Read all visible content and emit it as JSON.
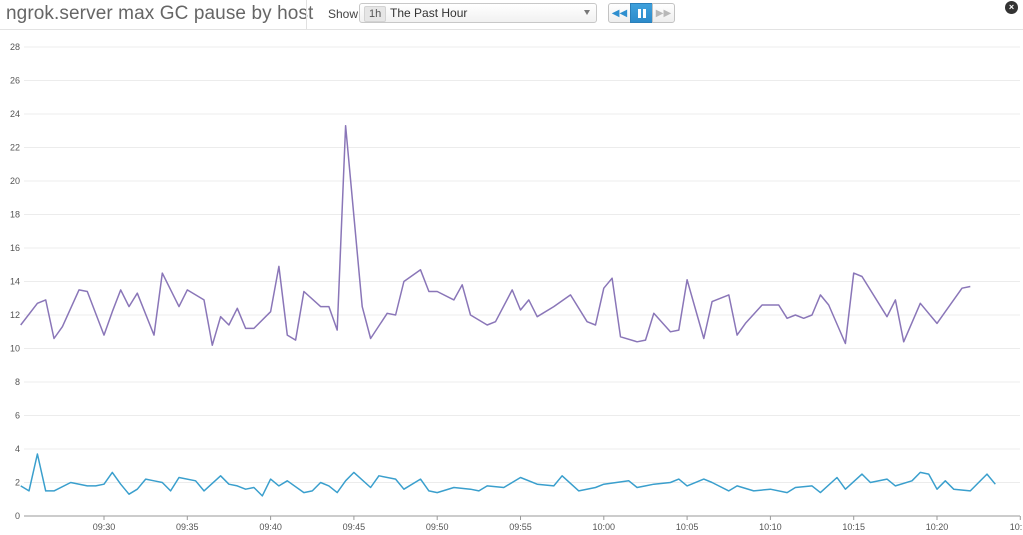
{
  "header": {
    "title": "ngrok.server max GC pause by host",
    "show_label": "Show",
    "time_badge": "1h",
    "time_value": "The Past Hour",
    "close_glyph": "×"
  },
  "controls": {
    "rewind_icon": "rewind-icon",
    "pause_icon": "pause-icon",
    "forward_icon": "fast-forward-icon"
  },
  "colors": {
    "series_purple": "#8a76b8",
    "series_blue": "#3a9fcd",
    "accent": "#2f8fcf"
  },
  "chart_data": {
    "type": "line",
    "xlabel": "",
    "ylabel": "",
    "ylim": [
      0,
      28
    ],
    "yticks": [
      0,
      2,
      4,
      6,
      8,
      10,
      12,
      14,
      16,
      18,
      20,
      22,
      24,
      26,
      28
    ],
    "xlim": [
      "09:25",
      "10:25"
    ],
    "xticks": [
      "09:30",
      "09:35",
      "09:40",
      "09:45",
      "09:50",
      "09:55",
      "10:00",
      "10:05",
      "10:10",
      "10:15",
      "10:20",
      "10:"
    ],
    "grid": true,
    "series": [
      {
        "points": [
          [
            "09:25",
            11.4
          ],
          [
            "09:26",
            12.7
          ],
          [
            "09:26:30",
            12.9
          ],
          [
            "09:27",
            10.6
          ],
          [
            "09:27:30",
            11.3
          ],
          [
            "09:28:30",
            13.5
          ],
          [
            "09:29",
            13.4
          ],
          [
            "09:30",
            10.8
          ],
          [
            "09:30:30",
            12.2
          ],
          [
            "09:31",
            13.5
          ],
          [
            "09:31:30",
            12.5
          ],
          [
            "09:32",
            13.3
          ],
          [
            "09:33",
            10.8
          ],
          [
            "09:33:30",
            14.5
          ],
          [
            "09:34:30",
            12.5
          ],
          [
            "09:35",
            13.5
          ],
          [
            "09:36",
            12.9
          ],
          [
            "09:36:30",
            10.2
          ],
          [
            "09:37",
            11.9
          ],
          [
            "09:37:30",
            11.4
          ],
          [
            "09:38",
            12.4
          ],
          [
            "09:38:30",
            11.2
          ],
          [
            "09:39",
            11.2
          ],
          [
            "09:40",
            12.2
          ],
          [
            "09:40:30",
            14.9
          ],
          [
            "09:41",
            10.8
          ],
          [
            "09:41:30",
            10.5
          ],
          [
            "09:42",
            13.4
          ],
          [
            "09:43",
            12.5
          ],
          [
            "09:43:30",
            12.5
          ],
          [
            "09:44",
            11.1
          ],
          [
            "09:44:30",
            23.3
          ],
          [
            "09:45:30",
            12.5
          ],
          [
            "09:46",
            10.6
          ],
          [
            "09:47",
            12.1
          ],
          [
            "09:47:30",
            12.0
          ],
          [
            "09:48",
            14.0
          ],
          [
            "09:49",
            14.7
          ],
          [
            "09:49:30",
            13.4
          ],
          [
            "09:50",
            13.4
          ],
          [
            "09:51",
            12.9
          ],
          [
            "09:51:30",
            13.8
          ],
          [
            "09:52",
            12.0
          ],
          [
            "09:53",
            11.4
          ],
          [
            "09:53:30",
            11.6
          ],
          [
            "09:54:30",
            13.5
          ],
          [
            "09:55",
            12.3
          ],
          [
            "09:55:30",
            12.9
          ],
          [
            "09:56",
            11.9
          ],
          [
            "09:57",
            12.5
          ],
          [
            "09:58",
            13.2
          ],
          [
            "09:59",
            11.6
          ],
          [
            "09:59:30",
            11.4
          ],
          [
            "10:00",
            13.6
          ],
          [
            "10:00:30",
            14.2
          ],
          [
            "10:01",
            10.7
          ],
          [
            "10:02",
            10.4
          ],
          [
            "10:02:30",
            10.5
          ],
          [
            "10:03",
            12.1
          ],
          [
            "10:04",
            11.0
          ],
          [
            "10:04:30",
            11.1
          ],
          [
            "10:05",
            14.1
          ],
          [
            "10:06",
            10.6
          ],
          [
            "10:06:30",
            12.8
          ],
          [
            "10:07:30",
            13.2
          ],
          [
            "10:08",
            10.8
          ],
          [
            "10:08:30",
            11.5
          ],
          [
            "10:09:30",
            12.6
          ],
          [
            "10:10:30",
            12.6
          ],
          [
            "10:11",
            11.8
          ],
          [
            "10:11:30",
            12.0
          ],
          [
            "10:12",
            11.8
          ],
          [
            "10:12:30",
            12.0
          ],
          [
            "10:13",
            13.2
          ],
          [
            "10:13:30",
            12.6
          ],
          [
            "10:14:30",
            10.3
          ],
          [
            "10:15",
            14.5
          ],
          [
            "10:15:30",
            14.3
          ],
          [
            "10:17",
            11.9
          ],
          [
            "10:17:30",
            12.9
          ],
          [
            "10:18",
            10.4
          ],
          [
            "10:19",
            12.7
          ],
          [
            "10:20",
            11.5
          ],
          [
            "10:20:30",
            12.2
          ],
          [
            "10:21:30",
            13.6
          ],
          [
            "10:22",
            13.7
          ]
        ]
      },
      {
        "points": [
          [
            "09:25",
            1.8
          ],
          [
            "09:25:30",
            1.5
          ],
          [
            "09:26",
            3.7
          ],
          [
            "09:26:30",
            1.5
          ],
          [
            "09:27",
            1.5
          ],
          [
            "09:28",
            2.0
          ],
          [
            "09:29",
            1.8
          ],
          [
            "09:29:30",
            1.8
          ],
          [
            "09:30",
            1.9
          ],
          [
            "09:30:30",
            2.6
          ],
          [
            "09:31",
            1.9
          ],
          [
            "09:31:30",
            1.3
          ],
          [
            "09:32",
            1.6
          ],
          [
            "09:32:30",
            2.2
          ],
          [
            "09:33",
            2.1
          ],
          [
            "09:33:30",
            2.0
          ],
          [
            "09:34",
            1.5
          ],
          [
            "09:34:30",
            2.3
          ],
          [
            "09:35:30",
            2.1
          ],
          [
            "09:36",
            1.5
          ],
          [
            "09:37",
            2.4
          ],
          [
            "09:37:30",
            1.9
          ],
          [
            "09:38",
            1.8
          ],
          [
            "09:38:30",
            1.6
          ],
          [
            "09:39",
            1.7
          ],
          [
            "09:39:30",
            1.2
          ],
          [
            "09:40",
            2.2
          ],
          [
            "09:40:30",
            1.8
          ],
          [
            "09:41",
            2.1
          ],
          [
            "09:42",
            1.4
          ],
          [
            "09:42:30",
            1.5
          ],
          [
            "09:43",
            2.0
          ],
          [
            "09:43:30",
            1.8
          ],
          [
            "09:44",
            1.4
          ],
          [
            "09:44:30",
            2.1
          ],
          [
            "09:45",
            2.6
          ],
          [
            "09:46",
            1.7
          ],
          [
            "09:46:30",
            2.4
          ],
          [
            "09:47:30",
            2.2
          ],
          [
            "09:48",
            1.6
          ],
          [
            "09:49",
            2.2
          ],
          [
            "09:49:30",
            1.5
          ],
          [
            "09:50",
            1.4
          ],
          [
            "09:51",
            1.7
          ],
          [
            "09:52",
            1.6
          ],
          [
            "09:52:30",
            1.5
          ],
          [
            "09:53",
            1.8
          ],
          [
            "09:54",
            1.7
          ],
          [
            "09:55",
            2.3
          ],
          [
            "09:56",
            1.9
          ],
          [
            "09:57",
            1.8
          ],
          [
            "09:57:30",
            2.4
          ],
          [
            "09:58:30",
            1.5
          ],
          [
            "09:59:30",
            1.7
          ],
          [
            "10:00",
            1.9
          ],
          [
            "10:01:30",
            2.1
          ],
          [
            "10:02",
            1.7
          ],
          [
            "10:02:30",
            1.8
          ],
          [
            "10:03",
            1.9
          ],
          [
            "10:04",
            2.0
          ],
          [
            "10:04:30",
            2.2
          ],
          [
            "10:05",
            1.8
          ],
          [
            "10:06",
            2.2
          ],
          [
            "10:06:30",
            2.0
          ],
          [
            "10:07:30",
            1.5
          ],
          [
            "10:08",
            1.8
          ],
          [
            "10:09",
            1.5
          ],
          [
            "10:10",
            1.6
          ],
          [
            "10:11",
            1.4
          ],
          [
            "10:11:30",
            1.7
          ],
          [
            "10:12:30",
            1.8
          ],
          [
            "10:13",
            1.4
          ],
          [
            "10:14",
            2.3
          ],
          [
            "10:14:30",
            1.6
          ],
          [
            "10:15:30",
            2.5
          ],
          [
            "10:16",
            2.0
          ],
          [
            "10:17",
            2.2
          ],
          [
            "10:17:30",
            1.8
          ],
          [
            "10:18:30",
            2.1
          ],
          [
            "10:19",
            2.6
          ],
          [
            "10:19:30",
            2.5
          ],
          [
            "10:20",
            1.6
          ],
          [
            "10:20:30",
            2.1
          ],
          [
            "10:21",
            1.6
          ],
          [
            "10:22",
            1.5
          ],
          [
            "10:23",
            2.5
          ],
          [
            "10:23:30",
            1.9
          ]
        ]
      }
    ]
  }
}
